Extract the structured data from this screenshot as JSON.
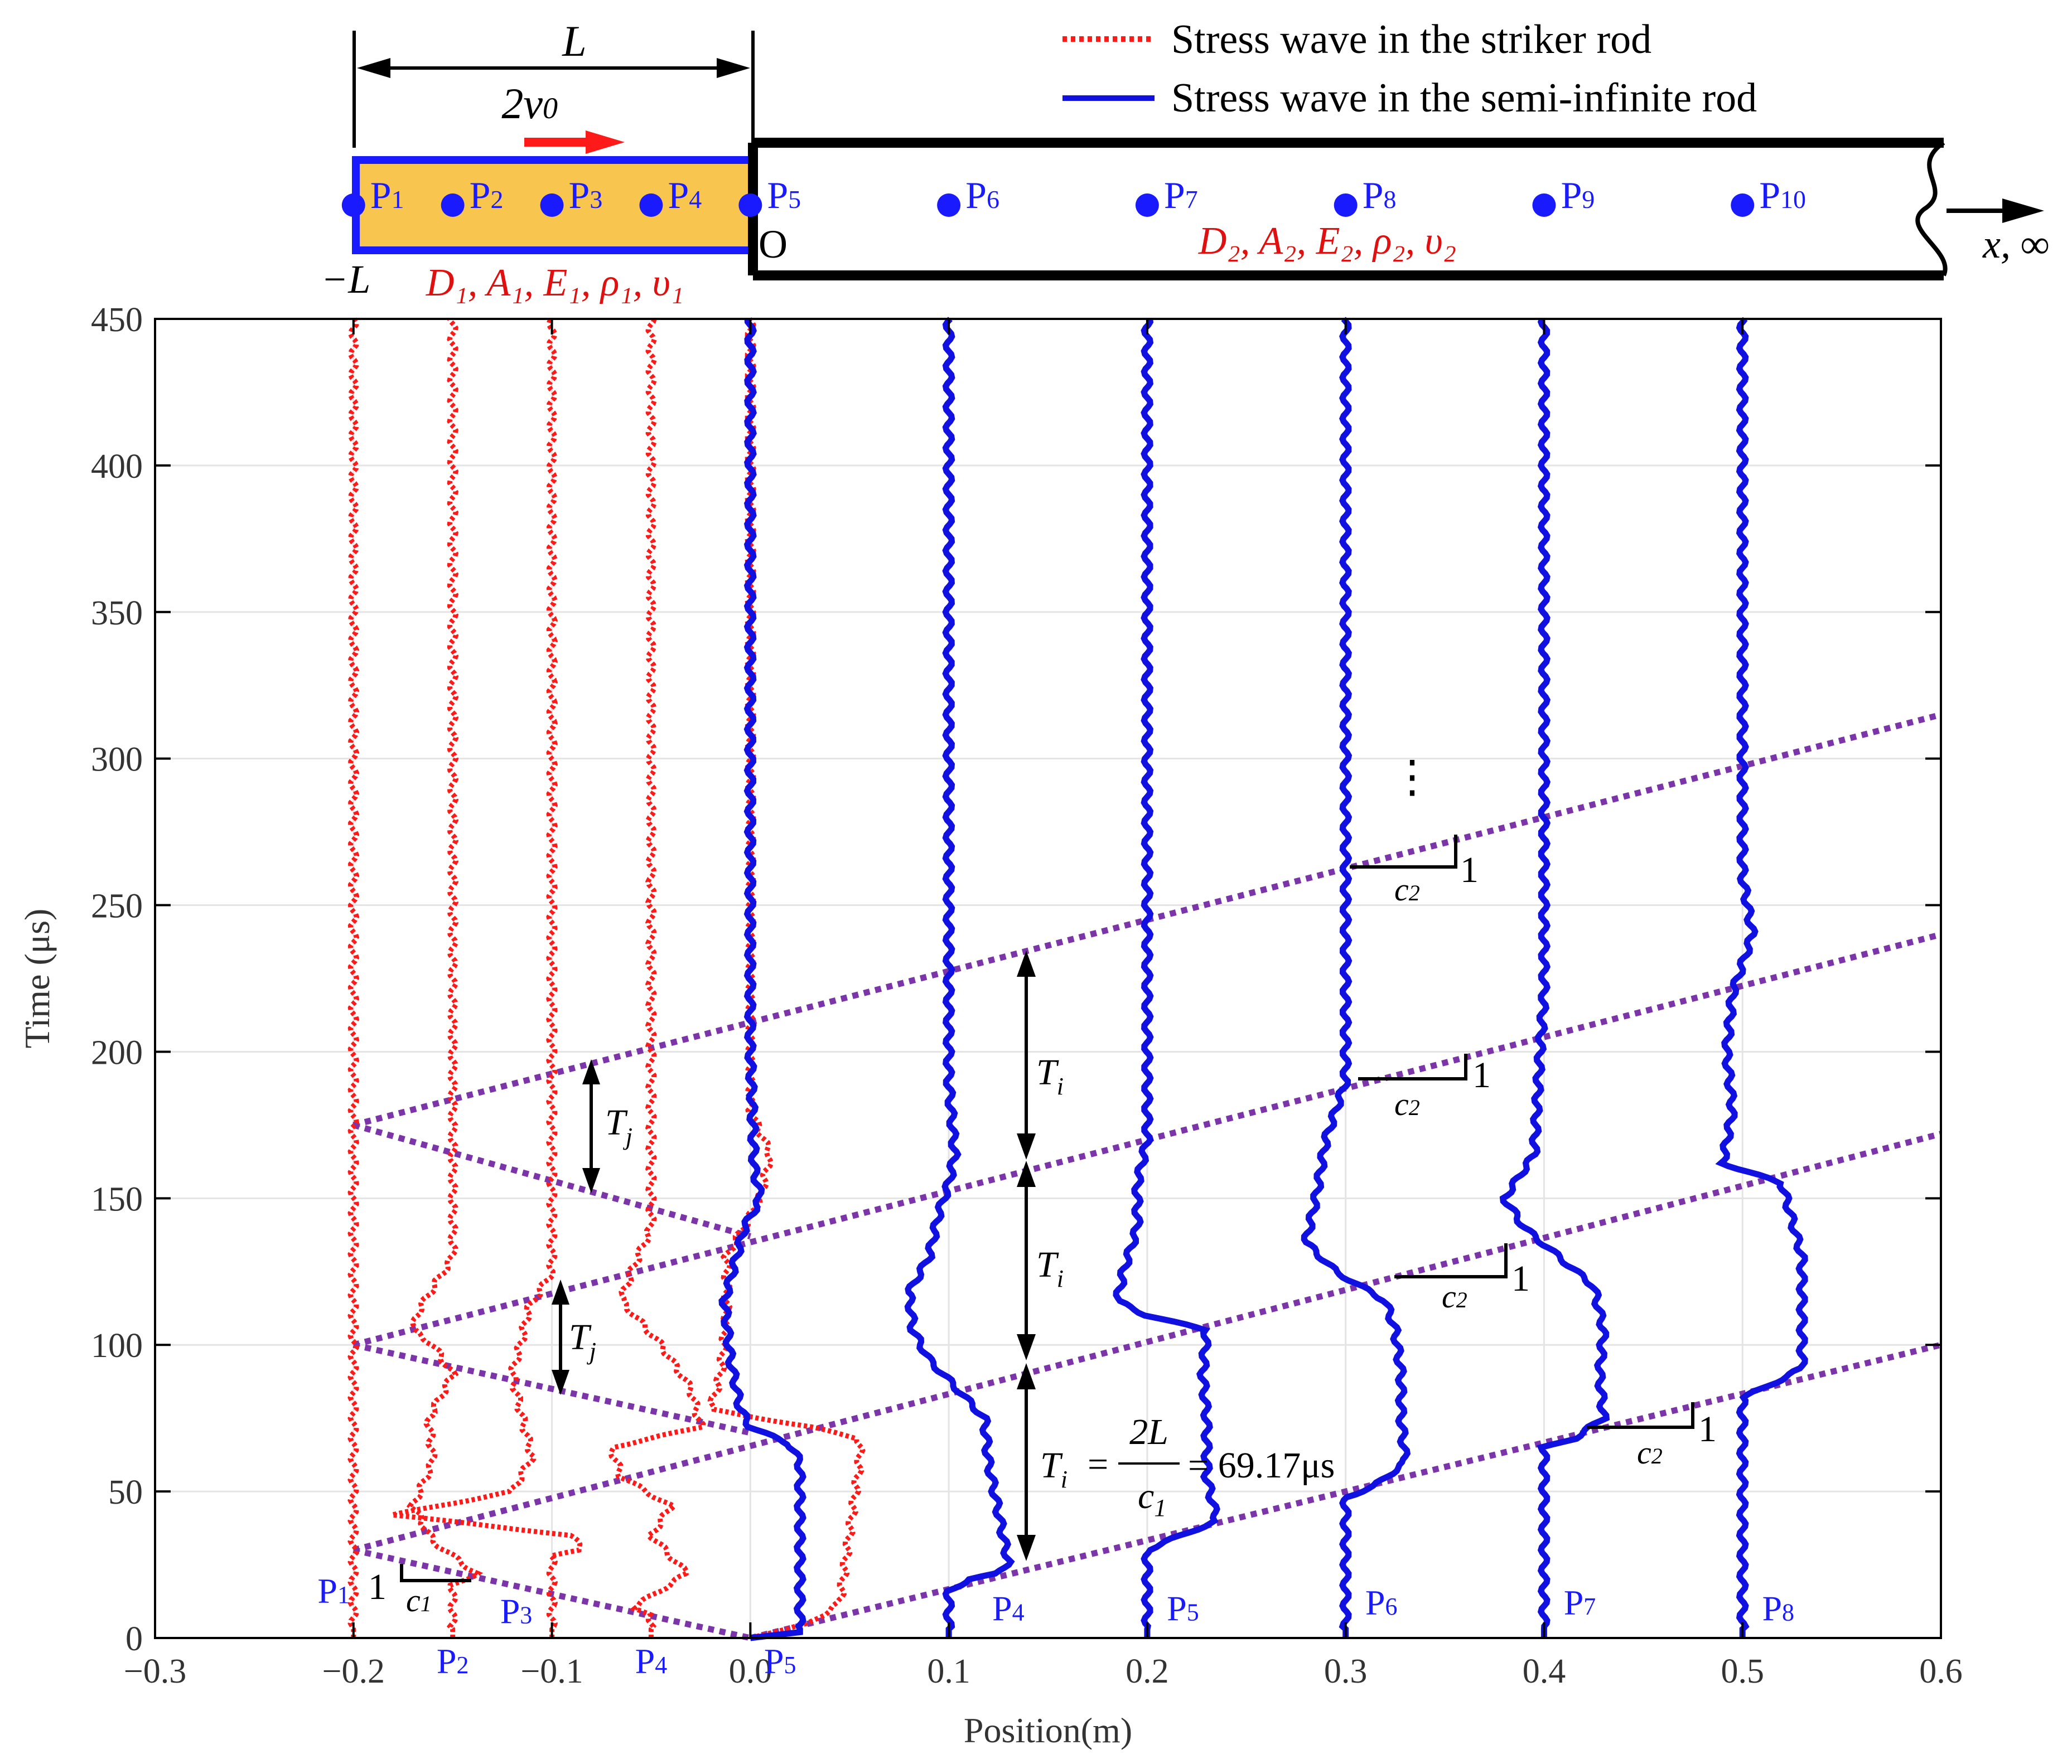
{
  "colors": {
    "striker_wave": "#ff1a1a",
    "semi_wave": "#1010e0",
    "guide": "#7b35a8",
    "striker_fill": "#f8c64e",
    "label_blue": "#1a1aff",
    "label_red": "#e01010",
    "dark": "#000000"
  },
  "schematic": {
    "length_label": "L",
    "velocity_label": "2v",
    "velocity_sub": "0",
    "origin_label": "O",
    "left_end_label": "−L",
    "x_label": "x, ∞",
    "rod1_props": "D₁, A₁, E₁, ρ₁, υ₁",
    "rod2_props": "D₂, A₂, E₂, ρ₂, υ₂",
    "points_rod1": [
      {
        "label": "P",
        "sub": "1",
        "x": -0.2
      },
      {
        "label": "P",
        "sub": "2",
        "x": -0.15
      },
      {
        "label": "P",
        "sub": "3",
        "x": -0.1
      },
      {
        "label": "P",
        "sub": "4",
        "x": -0.05
      }
    ],
    "points_rod2": [
      {
        "label": "P",
        "sub": "5",
        "x": 0.0
      },
      {
        "label": "P",
        "sub": "6",
        "x": 0.1
      },
      {
        "label": "P",
        "sub": "7",
        "x": 0.2
      },
      {
        "label": "P",
        "sub": "8",
        "x": 0.3
      },
      {
        "label": "P",
        "sub": "9",
        "x": 0.4
      },
      {
        "label": "P",
        "sub": "10",
        "x": 0.5
      }
    ]
  },
  "chart_data": {
    "type": "line",
    "title": "",
    "xlabel": "Position(m)",
    "ylabel": "Time (μs)",
    "xlim": [
      -0.3,
      0.6
    ],
    "ylim": [
      0,
      450
    ],
    "xticks": [
      -0.3,
      -0.2,
      -0.1,
      0.0,
      0.1,
      0.2,
      0.3,
      0.4,
      0.5,
      0.6
    ],
    "xtick_labels": [
      "−0.3",
      "−0.2",
      "−0.1",
      "0.0",
      "0.1",
      "0.2",
      "0.3",
      "0.4",
      "0.5",
      "0.6"
    ],
    "yticks": [
      0,
      50,
      100,
      150,
      200,
      250,
      300,
      350,
      400,
      450
    ],
    "grid": true,
    "legend_position": "top-right",
    "legend": [
      {
        "label": "Stress wave in the striker rod",
        "style": "dotted",
        "color": "#ff1a1a"
      },
      {
        "label": "Stress wave in the semi-infinite rod",
        "style": "solid",
        "color": "#1010e0"
      }
    ],
    "striker_traces": [
      {
        "label": "P1",
        "base_x": -0.2,
        "path": [
          [
            0,
            0
          ],
          [
            450,
            0
          ]
        ]
      },
      {
        "label": "P2",
        "base_x": -0.15,
        "path": [
          [
            0,
            0
          ],
          [
            18,
            0
          ],
          [
            22,
            0.012
          ],
          [
            33,
            -0.01
          ],
          [
            45,
            -0.02
          ],
          [
            60,
            -0.01
          ],
          [
            75,
            -0.012
          ],
          [
            90,
            0
          ],
          [
            100,
            -0.01
          ],
          [
            105,
            -0.02
          ],
          [
            112,
            -0.017
          ],
          [
            130,
            0
          ],
          [
            200,
            0
          ],
          [
            450,
            0
          ]
        ]
      },
      {
        "label": "P3",
        "base_x": -0.1,
        "path": [
          [
            0,
            0
          ],
          [
            28,
            0
          ],
          [
            30,
            0.015
          ],
          [
            35,
            0.01
          ],
          [
            42,
            -0.08
          ],
          [
            50,
            -0.02
          ],
          [
            62,
            -0.01
          ],
          [
            75,
            -0.015
          ],
          [
            90,
            -0.02
          ],
          [
            102,
            -0.015
          ],
          [
            112,
            -0.012
          ],
          [
            125,
            0
          ],
          [
            450,
            0
          ]
        ]
      },
      {
        "label": "P4",
        "base_x": -0.05,
        "path": [
          [
            0,
            0
          ],
          [
            8,
            0
          ],
          [
            10,
            -0.01
          ],
          [
            22,
            0.018
          ],
          [
            35,
            0
          ],
          [
            45,
            0.01
          ],
          [
            55,
            -0.015
          ],
          [
            65,
            -0.02
          ],
          [
            72,
            0.025
          ],
          [
            85,
            0.02
          ],
          [
            100,
            0.005
          ],
          [
            115,
            -0.015
          ],
          [
            125,
            -0.01
          ],
          [
            140,
            0
          ],
          [
            180,
            0
          ],
          [
            450,
            0
          ]
        ]
      },
      {
        "label": "P5",
        "base_x": 0.0,
        "path": [
          [
            0,
            0
          ],
          [
            5,
            0.03
          ],
          [
            12,
            0.045
          ],
          [
            60,
            0.055
          ],
          [
            68,
            0.055
          ],
          [
            72,
            0.03
          ],
          [
            78,
            -0.02
          ],
          [
            90,
            -0.015
          ],
          [
            110,
            -0.012
          ],
          [
            130,
            -0.012
          ],
          [
            150,
            0.005
          ],
          [
            165,
            0.01
          ],
          [
            180,
            0
          ],
          [
            450,
            0
          ]
        ]
      }
    ],
    "semi_traces": [
      {
        "label": "P5",
        "base_x": 0.0,
        "path": [
          [
            0,
            0
          ],
          [
            2,
            0.025
          ],
          [
            60,
            0.025
          ],
          [
            66,
            0.02
          ],
          [
            72,
            0
          ],
          [
            78,
            -0.005
          ],
          [
            95,
            -0.01
          ],
          [
            115,
            -0.013
          ],
          [
            140,
            -0.003
          ],
          [
            150,
            0.005
          ],
          [
            160,
            0.002
          ],
          [
            200,
            0
          ],
          [
            450,
            0
          ]
        ]
      },
      {
        "label": "P4",
        "base_x": 0.1,
        "path": [
          [
            0,
            0
          ],
          [
            16,
            0
          ],
          [
            20,
            0.01
          ],
          [
            22,
            0.025
          ],
          [
            26,
            0.03
          ],
          [
            60,
            0.02
          ],
          [
            75,
            0.018
          ],
          [
            88,
            0
          ],
          [
            95,
            -0.01
          ],
          [
            105,
            -0.018
          ],
          [
            118,
            -0.02
          ],
          [
            130,
            -0.01
          ],
          [
            145,
            -0.005
          ],
          [
            155,
            0
          ],
          [
            165,
            0.003
          ],
          [
            190,
            0
          ],
          [
            230,
            0
          ],
          [
            450,
            0
          ]
        ]
      },
      {
        "label": "P5",
        "base_x": 0.2,
        "path": [
          [
            0,
            0
          ],
          [
            30,
            0
          ],
          [
            33,
            0.01
          ],
          [
            40,
            0.035
          ],
          [
            55,
            0.03
          ],
          [
            75,
            0.03
          ],
          [
            90,
            0.028
          ],
          [
            105,
            0.03
          ],
          [
            110,
            0
          ],
          [
            115,
            -0.015
          ],
          [
            125,
            -0.012
          ],
          [
            140,
            -0.005
          ],
          [
            155,
            -0.005
          ],
          [
            170,
            0
          ],
          [
            450,
            0
          ]
        ]
      },
      {
        "label": "P6",
        "base_x": 0.3,
        "path": [
          [
            0,
            0
          ],
          [
            48,
            0
          ],
          [
            52,
            0.015
          ],
          [
            60,
            0.03
          ],
          [
            75,
            0.028
          ],
          [
            90,
            0.028
          ],
          [
            105,
            0.025
          ],
          [
            115,
            0.02
          ],
          [
            125,
            -0.005
          ],
          [
            135,
            -0.02
          ],
          [
            150,
            -0.015
          ],
          [
            170,
            -0.01
          ],
          [
            190,
            0
          ],
          [
            250,
            0
          ],
          [
            450,
            0
          ]
        ]
      },
      {
        "label": "P7",
        "base_x": 0.4,
        "path": [
          [
            0,
            0
          ],
          [
            65,
            0
          ],
          [
            68,
            0.015
          ],
          [
            75,
            0.03
          ],
          [
            90,
            0.028
          ],
          [
            105,
            0.03
          ],
          [
            120,
            0.025
          ],
          [
            140,
            -0.01
          ],
          [
            150,
            -0.02
          ],
          [
            165,
            -0.005
          ],
          [
            200,
            -0.002
          ],
          [
            220,
            0
          ],
          [
            250,
            0
          ],
          [
            450,
            0
          ]
        ]
      },
      {
        "label": "P8",
        "base_x": 0.5,
        "path": [
          [
            0,
            0
          ],
          [
            82,
            0
          ],
          [
            85,
            0.01
          ],
          [
            92,
            0.03
          ],
          [
            110,
            0.03
          ],
          [
            130,
            0.03
          ],
          [
            155,
            0.02
          ],
          [
            162,
            -0.01
          ],
          [
            180,
            -0.005
          ],
          [
            200,
            -0.008
          ],
          [
            220,
            -0.005
          ],
          [
            240,
            0.005
          ],
          [
            260,
            0
          ],
          [
            450,
            0
          ]
        ]
      }
    ],
    "guide_lines": [
      [
        [
          -0.2,
          30
        ],
        [
          0.0,
          0
        ]
      ],
      [
        [
          0.0,
          0
        ],
        [
          0.6,
          100
        ]
      ],
      [
        [
          -0.2,
          30
        ],
        [
          0.6,
          172
        ]
      ],
      [
        [
          -0.2,
          100
        ],
        [
          0.0,
          70
        ]
      ],
      [
        [
          -0.2,
          100
        ],
        [
          0.6,
          240
        ]
      ],
      [
        [
          -0.2,
          175
        ],
        [
          0.0,
          137
        ]
      ],
      [
        [
          -0.2,
          175
        ],
        [
          0.6,
          315
        ]
      ]
    ],
    "bottom_labels_blue": [
      {
        "label": "P",
        "sub": "1",
        "x": -0.21,
        "y": 12
      },
      {
        "label": "P",
        "sub": "2",
        "x": -0.15,
        "y": -12
      },
      {
        "label": "P",
        "sub": "3",
        "x": -0.118,
        "y": 5
      },
      {
        "label": "P",
        "sub": "4",
        "x": -0.05,
        "y": -12
      },
      {
        "label": "P",
        "sub": "5",
        "x": 0.015,
        "y": -12
      },
      {
        "label": "P",
        "sub": "4",
        "x": 0.13,
        "y": 6
      },
      {
        "label": "P",
        "sub": "5",
        "x": 0.218,
        "y": 6
      },
      {
        "label": "P",
        "sub": "6",
        "x": 0.318,
        "y": 8
      },
      {
        "label": "P",
        "sub": "7",
        "x": 0.418,
        "y": 8
      },
      {
        "label": "P",
        "sub": "8",
        "x": 0.518,
        "y": 6
      }
    ],
    "annotations": {
      "Tj": "T",
      "Tj_sub": "j",
      "Ti": "T",
      "Ti_sub": "i",
      "Ti_formula_lhs": "T",
      "Ti_formula_lhs_sub": "i",
      "Ti_formula_eq": "=",
      "Ti_formula_num": "2L",
      "Ti_formula_den": "c",
      "Ti_formula_den_sub": "1",
      "Ti_formula_value": "= 69.17μs",
      "slope_one": "1",
      "slope_c1": "c",
      "slope_c1_sub": "1",
      "slope_c2": "c",
      "slope_c2_sub": "2",
      "ellipsis": "⋮"
    }
  }
}
